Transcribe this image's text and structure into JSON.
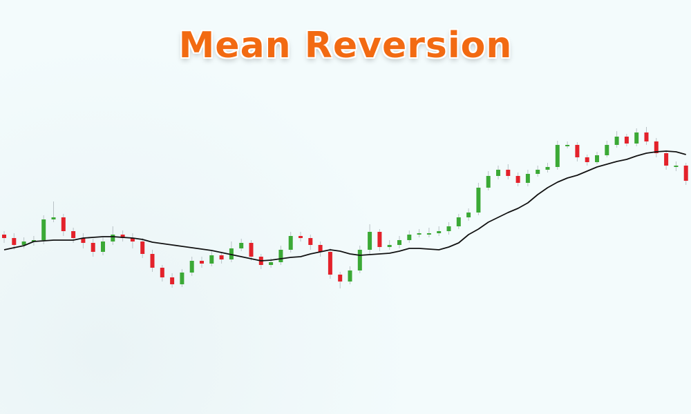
{
  "chart_data": {
    "type": "candlestick",
    "title": "Mean Reversion",
    "ylim": [
      0,
      600
    ],
    "up_color": "#3ba936",
    "down_color": "#e3222b",
    "open": [
      260,
      255,
      245,
      250,
      252,
      282,
      285,
      265,
      255,
      248,
      235,
      250,
      260,
      255,
      250,
      232,
      212,
      198,
      188,
      205,
      222,
      218,
      230,
      224,
      240,
      248,
      228,
      216,
      220,
      238,
      258,
      255,
      245,
      235,
      202,
      192,
      208,
      238,
      264,
      242,
      245,
      252,
      260,
      262,
      262,
      265,
      272,
      285,
      292,
      328,
      345,
      354,
      345,
      335,
      348,
      354,
      358,
      390,
      390,
      372,
      365,
      375,
      390,
      402,
      392,
      408,
      395,
      378,
      360,
      360
    ],
    "high": [
      265,
      262,
      256,
      258,
      288,
      308,
      290,
      270,
      262,
      254,
      256,
      272,
      266,
      262,
      255,
      238,
      216,
      204,
      210,
      228,
      228,
      236,
      234,
      250,
      254,
      252,
      232,
      226,
      244,
      264,
      264,
      260,
      250,
      240,
      206,
      214,
      244,
      275,
      268,
      252,
      258,
      266,
      268,
      270,
      272,
      278,
      290,
      298,
      335,
      352,
      360,
      362,
      350,
      354,
      360,
      364,
      396,
      395,
      394,
      376,
      380,
      396,
      410,
      406,
      414,
      416,
      400,
      382,
      366,
      364
    ],
    "low": [
      248,
      238,
      240,
      244,
      246,
      278,
      258,
      248,
      240,
      228,
      230,
      245,
      250,
      240,
      226,
      206,
      192,
      183,
      184,
      200,
      212,
      214,
      218,
      220,
      236,
      222,
      210,
      212,
      216,
      234,
      250,
      238,
      228,
      196,
      182,
      188,
      204,
      232,
      236,
      238,
      240,
      248,
      256,
      256,
      258,
      260,
      268,
      280,
      288,
      324,
      340,
      340,
      330,
      330,
      344,
      350,
      354,
      385,
      366,
      360,
      362,
      372,
      386,
      388,
      388,
      390,
      372,
      354,
      352,
      332
    ],
    "close": [
      255,
      245,
      250,
      252,
      282,
      285,
      265,
      255,
      248,
      235,
      250,
      260,
      255,
      250,
      232,
      212,
      198,
      188,
      205,
      222,
      218,
      230,
      224,
      240,
      248,
      228,
      216,
      220,
      238,
      258,
      255,
      245,
      235,
      202,
      192,
      208,
      238,
      264,
      242,
      245,
      252,
      260,
      262,
      262,
      265,
      272,
      285,
      292,
      328,
      345,
      354,
      345,
      335,
      348,
      354,
      358,
      390,
      390,
      372,
      365,
      375,
      390,
      402,
      392,
      408,
      395,
      378,
      360,
      360,
      338
    ],
    "moving_average": {
      "color": "#111111",
      "values": [
        238,
        241,
        244,
        250,
        251,
        252,
        252,
        252,
        255,
        256,
        257,
        257,
        256,
        255,
        253,
        249,
        247,
        245,
        243,
        241,
        239,
        237,
        234,
        231,
        228,
        225,
        222,
        223,
        225,
        227,
        228,
        232,
        235,
        238,
        236,
        232,
        230,
        231,
        232,
        233,
        236,
        240,
        240,
        239,
        238,
        242,
        248,
        260,
        268,
        278,
        285,
        292,
        298,
        306,
        318,
        328,
        336,
        342,
        346,
        352,
        358,
        362,
        366,
        369,
        374,
        378,
        380,
        381,
        380,
        376
      ]
    }
  }
}
